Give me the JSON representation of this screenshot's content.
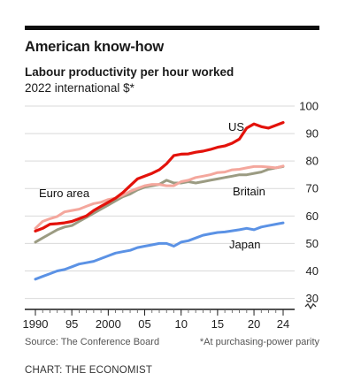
{
  "header": {
    "title": "American know-how",
    "subtitle": "Labour productivity per hour worked",
    "units": "2022 international $*"
  },
  "footer": {
    "source": "Source: The Conference Board",
    "footnote": "*At purchasing-power parity",
    "credit": "CHART: THE ECONOMIST"
  },
  "colors": {
    "us": "#e3120b",
    "euro_area": "#f4a79d",
    "britain": "#9b9b82",
    "japan": "#5b92e5",
    "gridline": "#d9d9d9",
    "axis": "#1a1a1a"
  },
  "chart_data": {
    "type": "line",
    "x": [
      1990,
      1991,
      1992,
      1993,
      1994,
      1995,
      1996,
      1997,
      1998,
      1999,
      2000,
      2001,
      2002,
      2003,
      2004,
      2005,
      2006,
      2007,
      2008,
      2009,
      2010,
      2011,
      2012,
      2013,
      2014,
      2015,
      2016,
      2017,
      2018,
      2019,
      2020,
      2021,
      2022,
      2023,
      2024
    ],
    "x_tick_labels": [
      "1990",
      "95",
      "2000",
      "05",
      "10",
      "15",
      "20",
      "24"
    ],
    "x_tick_values": [
      1990,
      1995,
      2000,
      2005,
      2010,
      2015,
      2020,
      2024
    ],
    "y_ticks": [
      30,
      40,
      50,
      60,
      70,
      80,
      90,
      100
    ],
    "ylim": [
      26,
      100
    ],
    "axis_break": true,
    "grid": true,
    "y_axis_side": "right",
    "series": [
      {
        "name": "US",
        "color_key": "us",
        "values": [
          54.5,
          55.5,
          57.0,
          57.2,
          57.5,
          58.0,
          59.0,
          60.0,
          62.0,
          63.5,
          65.0,
          66.5,
          68.5,
          71.0,
          73.5,
          74.5,
          75.5,
          76.8,
          79.0,
          82.0,
          82.5,
          82.6,
          83.2,
          83.6,
          84.2,
          85.0,
          85.5,
          86.5,
          88.0,
          92.0,
          93.5,
          92.5,
          92.0,
          93.0,
          94.0
        ]
      },
      {
        "name": "Euro area",
        "color_key": "euro_area",
        "values": [
          55.5,
          58.0,
          59.0,
          59.8,
          61.5,
          62.0,
          62.5,
          63.5,
          64.5,
          65.0,
          66.0,
          66.5,
          67.5,
          69.0,
          70.0,
          71.0,
          71.5,
          71.5,
          71.0,
          71.0,
          72.5,
          73.0,
          74.0,
          74.5,
          75.0,
          75.8,
          76.0,
          76.8,
          77.0,
          77.5,
          78.0,
          78.0,
          77.8,
          77.5,
          78.2
        ]
      },
      {
        "name": "Britain",
        "color_key": "britain",
        "values": [
          50.5,
          52.0,
          53.5,
          55.0,
          56.0,
          56.5,
          58.0,
          59.5,
          61.0,
          62.5,
          64.0,
          65.5,
          67.0,
          68.0,
          69.5,
          70.5,
          71.0,
          71.5,
          73.0,
          72.0,
          72.0,
          72.5,
          72.0,
          72.5,
          73.0,
          73.5,
          74.0,
          74.5,
          75.0,
          75.0,
          75.5,
          76.0,
          77.0,
          77.5,
          78.0
        ]
      },
      {
        "name": "Japan",
        "color_key": "japan",
        "values": [
          37.0,
          38.0,
          39.0,
          40.0,
          40.5,
          41.5,
          42.5,
          43.0,
          43.5,
          44.5,
          45.5,
          46.5,
          47.0,
          47.5,
          48.5,
          49.0,
          49.5,
          50.0,
          50.0,
          49.0,
          50.5,
          51.0,
          52.0,
          53.0,
          53.5,
          54.0,
          54.2,
          54.6,
          55.0,
          55.5,
          55.0,
          56.0,
          56.5,
          57.0,
          57.5
        ]
      }
    ],
    "series_labels": [
      {
        "text": "US",
        "series": "US"
      },
      {
        "text": "Euro area",
        "series": "Euro area"
      },
      {
        "text": "Britain",
        "series": "Britain"
      },
      {
        "text": "Japan",
        "series": "Japan"
      }
    ]
  }
}
